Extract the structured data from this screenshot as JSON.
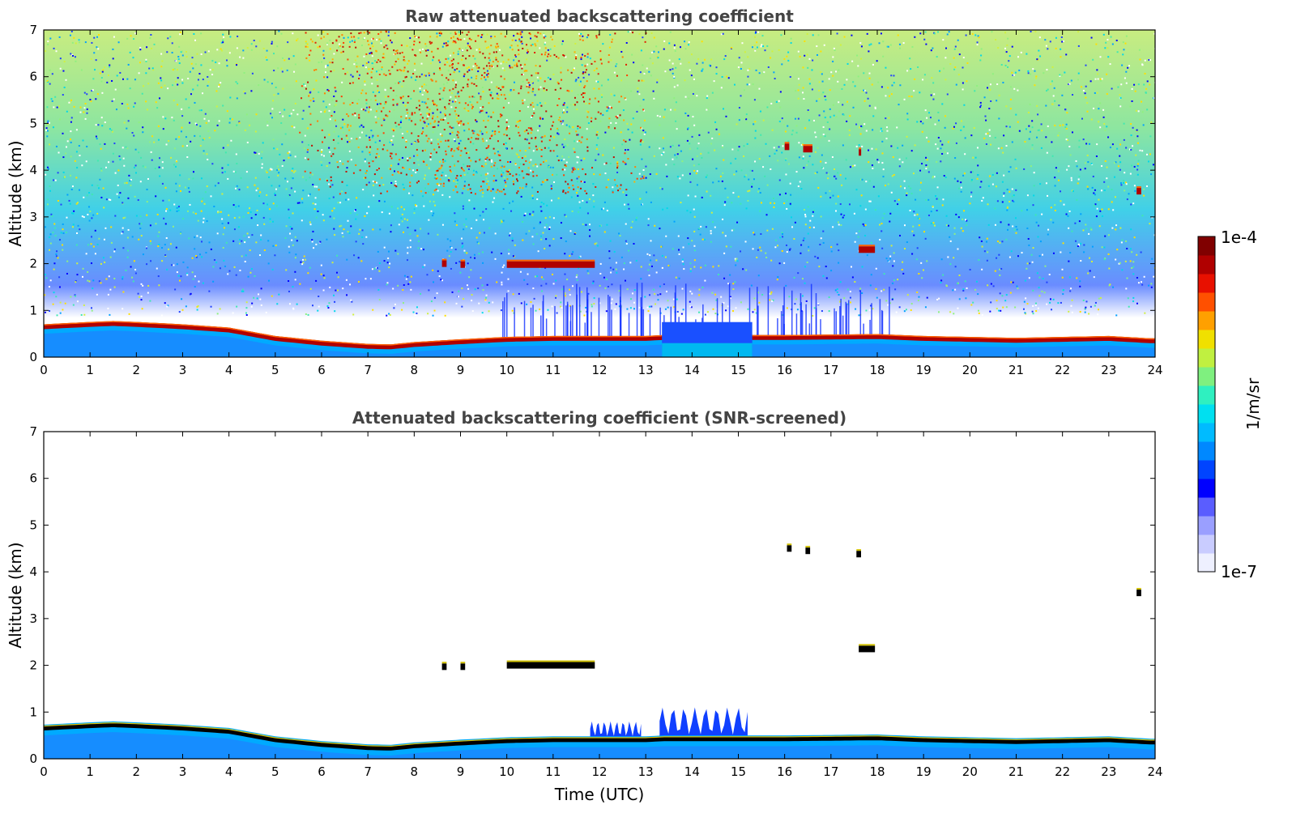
{
  "chart_data": [
    {
      "type": "heatmap",
      "title": "Raw attenuated backscattering coefficient",
      "xlabel": "",
      "ylabel": "Altitude (km)",
      "xlim": [
        0,
        24
      ],
      "ylim": [
        0,
        7
      ],
      "x_ticks": [
        "0",
        "1",
        "2",
        "3",
        "4",
        "5",
        "6",
        "7",
        "8",
        "9",
        "10",
        "11",
        "12",
        "13",
        "14",
        "15",
        "16",
        "17",
        "18",
        "19",
        "20",
        "21",
        "22",
        "23",
        "24"
      ],
      "y_ticks": [
        "0",
        "1",
        "2",
        "3",
        "4",
        "5",
        "6",
        "7"
      ],
      "boundary_layer_top_km": [
        [
          0,
          0.65
        ],
        [
          1,
          0.7
        ],
        [
          1.5,
          0.72
        ],
        [
          2,
          0.7
        ],
        [
          3,
          0.65
        ],
        [
          4,
          0.58
        ],
        [
          5,
          0.4
        ],
        [
          6,
          0.3
        ],
        [
          7,
          0.23
        ],
        [
          7.5,
          0.22
        ],
        [
          8,
          0.27
        ],
        [
          9,
          0.33
        ],
        [
          10,
          0.38
        ],
        [
          11,
          0.4
        ],
        [
          12,
          0.4
        ],
        [
          13,
          0.4
        ],
        [
          13.4,
          0.42
        ],
        [
          15.3,
          0.42
        ],
        [
          16,
          0.42
        ],
        [
          17,
          0.43
        ],
        [
          18,
          0.44
        ],
        [
          19,
          0.4
        ],
        [
          20,
          0.38
        ],
        [
          21,
          0.36
        ],
        [
          22,
          0.38
        ],
        [
          23,
          0.4
        ],
        [
          23.9,
          0.35
        ]
      ],
      "cloud_layers": [
        {
          "t_start": 8.6,
          "t_end": 8.7,
          "alt_km": 2.0
        },
        {
          "t_start": 9.0,
          "t_end": 9.1,
          "alt_km": 1.98
        },
        {
          "t_start": 10.0,
          "t_end": 11.9,
          "alt_km": 1.98
        },
        {
          "t_start": 16.0,
          "t_end": 16.1,
          "alt_km": 4.5
        },
        {
          "t_start": 16.4,
          "t_end": 16.6,
          "alt_km": 4.45
        },
        {
          "t_start": 17.6,
          "t_end": 17.65,
          "alt_km": 4.38
        },
        {
          "t_start": 17.6,
          "t_end": 17.95,
          "alt_km": 2.3
        },
        {
          "t_start": 23.6,
          "t_end": 23.7,
          "alt_km": 3.55
        }
      ],
      "high_noise_region": {
        "t_start": 5.5,
        "t_end": 13.0,
        "alt_from_km": 3.5,
        "alt_to_km": 7
      }
    },
    {
      "type": "heatmap",
      "title": "Attenuated backscattering coefficient (SNR-screened)",
      "xlabel": "Time (UTC)",
      "ylabel": "Altitude (km)",
      "xlim": [
        0,
        24
      ],
      "ylim": [
        0,
        7
      ],
      "x_ticks": [
        "0",
        "1",
        "2",
        "3",
        "4",
        "5",
        "6",
        "7",
        "8",
        "9",
        "10",
        "11",
        "12",
        "13",
        "14",
        "15",
        "16",
        "17",
        "18",
        "19",
        "20",
        "21",
        "22",
        "23",
        "24"
      ],
      "y_ticks": [
        "0",
        "1",
        "2",
        "3",
        "4",
        "5",
        "6",
        "7"
      ],
      "aerosol_plumes": [
        {
          "t_start": 11.8,
          "t_end": 12.9,
          "top_km": 0.8
        },
        {
          "t_start": 13.3,
          "t_end": 15.2,
          "top_km": 1.1
        }
      ],
      "cloud_layers": [
        {
          "t_start": 8.6,
          "t_end": 8.7,
          "alt_km": 1.97
        },
        {
          "t_start": 9.0,
          "t_end": 9.1,
          "alt_km": 1.97
        },
        {
          "t_start": 10.0,
          "t_end": 11.9,
          "alt_km": 2.0
        },
        {
          "t_start": 16.05,
          "t_end": 16.15,
          "alt_km": 4.5
        },
        {
          "t_start": 16.45,
          "t_end": 16.55,
          "alt_km": 4.45
        },
        {
          "t_start": 17.55,
          "t_end": 17.65,
          "alt_km": 4.38
        },
        {
          "t_start": 17.6,
          "t_end": 17.95,
          "alt_km": 2.35
        },
        {
          "t_start": 23.6,
          "t_end": 23.7,
          "alt_km": 3.55
        }
      ]
    }
  ],
  "colorbar": {
    "label": "1/m/sr",
    "max_label": "1e-4",
    "min_label": "1e-7",
    "colors": [
      "#eef0ff",
      "#c9ccff",
      "#9a9fff",
      "#5a5dff",
      "#0000ff",
      "#0044ff",
      "#0088ff",
      "#00bbff",
      "#00e0f0",
      "#2ff0c0",
      "#7ff07f",
      "#c0f040",
      "#f0e000",
      "#ffa000",
      "#ff5000",
      "#e81000",
      "#b00000",
      "#800000"
    ]
  }
}
